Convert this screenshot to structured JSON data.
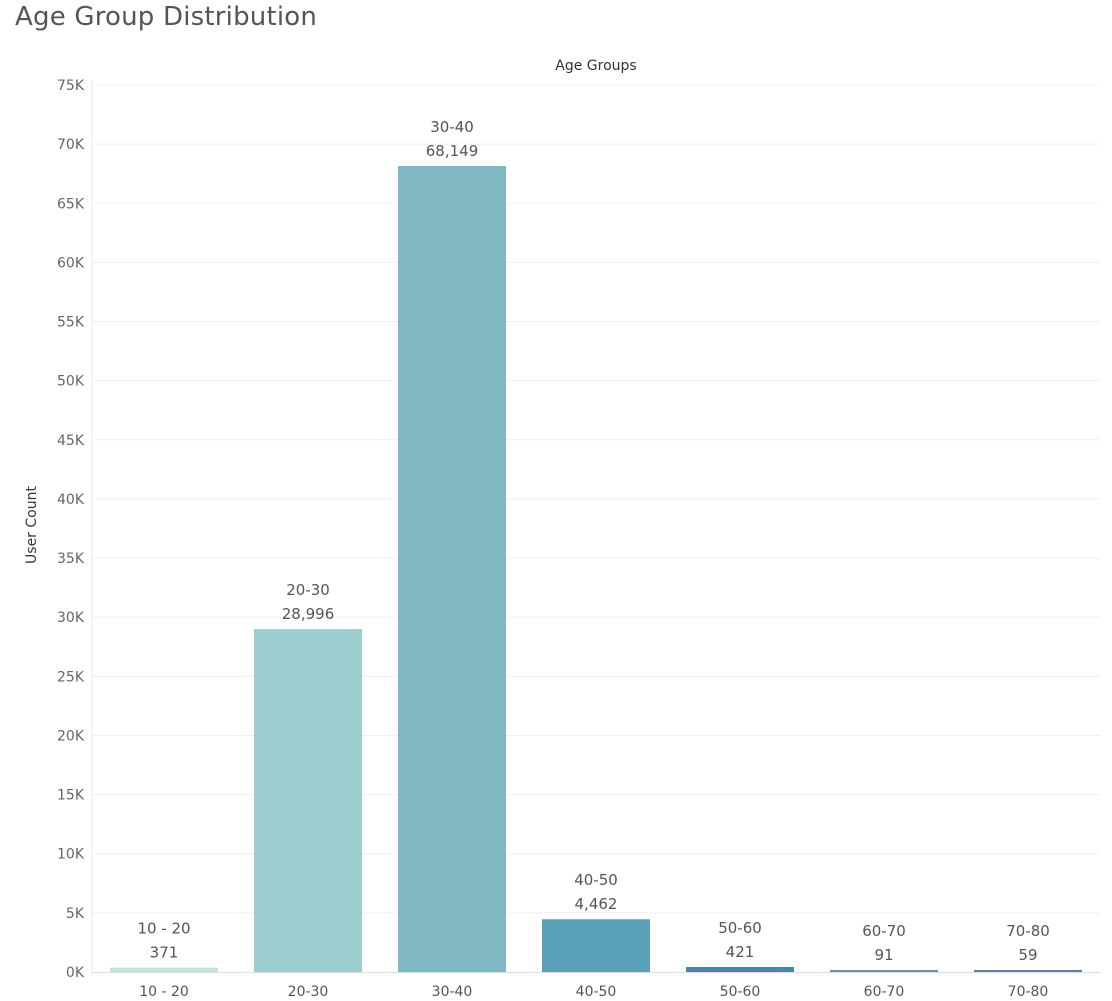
{
  "chart_data": {
    "type": "bar",
    "title": "Age Group Distribution",
    "xlabel": "Age Groups",
    "xlabel_position": "top",
    "ylabel": "User Count",
    "categories": [
      "10 - 20",
      "20-30",
      "30-40",
      "40-50",
      "50-60",
      "60-70",
      "70-80"
    ],
    "values": [
      371,
      28996,
      68149,
      4462,
      421,
      91,
      59
    ],
    "value_labels": [
      "371",
      "28,996",
      "68,149",
      "4,462",
      "421",
      "91",
      "59"
    ],
    "colors": [
      "#c5e3dd",
      "#9ecdcf",
      "#7fb8c3",
      "#5aa0b7",
      "#4887a6",
      "#6b8fb1",
      "#5f81a6"
    ],
    "ylim": [
      0,
      75000
    ],
    "yticks": [
      0,
      5000,
      10000,
      15000,
      20000,
      25000,
      30000,
      35000,
      40000,
      45000,
      50000,
      55000,
      60000,
      65000,
      70000,
      75000
    ],
    "ytick_labels": [
      "0K",
      "5K",
      "10K",
      "15K",
      "20K",
      "25K",
      "30K",
      "35K",
      "40K",
      "45K",
      "50K",
      "55K",
      "60K",
      "65K",
      "70K",
      "75K"
    ],
    "grid": true,
    "legend": "none"
  }
}
